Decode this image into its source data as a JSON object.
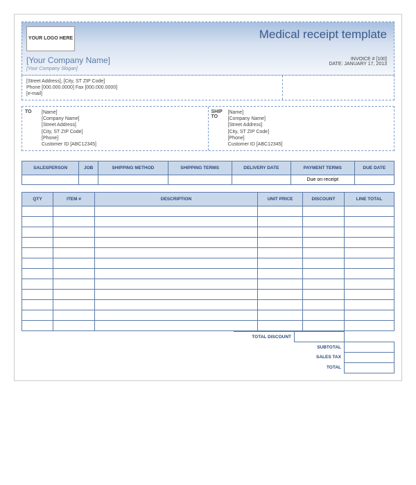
{
  "logo_text": "YOUR LOGO HERE",
  "title": "Medical receipt template",
  "company_name": "[Your Company Name]",
  "slogan": "[Your Company Slogan]",
  "invoice_no_label": "INVOICE # [100]",
  "invoice_date_label": "DATE: JANUARY 17, 2013",
  "contact": {
    "address": "[Street Address], [City, ST  ZIP Code]",
    "phones": "Phone [000.000.0000] Fax [000.000.0000]",
    "email": "[e-mail]"
  },
  "to_label": "TO",
  "ship_label": "SHIP TO",
  "addr": {
    "name": "[Name]",
    "company": "[Company Name]",
    "street": "[Street Address]",
    "city": "[City, ST  ZIP Code]",
    "phone": "[Phone]",
    "cust": "Customer ID [ABC12345]"
  },
  "terms": {
    "cols": [
      "SALESPERSON",
      "JOB",
      "SHIPPING METHOD",
      "SHIPPING TERMS",
      "DELIVERY DATE",
      "PAYMENT TERMS",
      "DUE DATE"
    ],
    "payment_terms_val": "Due on receipt"
  },
  "items": {
    "cols": [
      "QTY",
      "ITEM #",
      "DESCRIPTION",
      "UNIT PRICE",
      "DISCOUNT",
      "LINE TOTAL"
    ],
    "row_count": 12,
    "col_widths": [
      "45px",
      "60px",
      "auto",
      "65px",
      "60px",
      "72px"
    ]
  },
  "totals": {
    "total_discount": "TOTAL DISCOUNT",
    "subtotal": "SUBTOTAL",
    "sales_tax": "SALES TAX",
    "total": "TOTAL"
  },
  "colors": {
    "header_grad_top": "#a8bfe0",
    "header_grad_bot": "#f4f7fb",
    "border": "#5a7aa8",
    "th_bg": "#c9d7ea",
    "dash": "#7a9cc9"
  }
}
